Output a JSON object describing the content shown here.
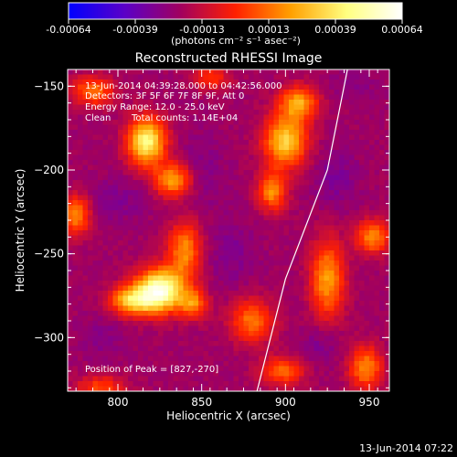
{
  "colorbar": {
    "ticks": [
      "-0.00064",
      "-0.00039",
      "-0.00013",
      "0.00013",
      "0.00039",
      "0.00064"
    ],
    "units": "(photons cm⁻² s⁻¹ asec⁻²)",
    "range": [
      -0.00064,
      0.00064
    ],
    "palette": [
      "#0000ff",
      "#5a00c8",
      "#a00060",
      "#ff2000",
      "#ffa000",
      "#ffff80",
      "#ffffff"
    ]
  },
  "chart_data": {
    "type": "heatmap",
    "title": "Reconstructed RHESSI Image",
    "xlabel": "Heliocentric X (arcsec)",
    "ylabel": "Heliocentric Y (arcsec)",
    "xlim": [
      770,
      962
    ],
    "ylim": [
      -332,
      -140
    ],
    "xticks": [
      800,
      850,
      900,
      950
    ],
    "yticks": [
      -150,
      -200,
      -250,
      -300
    ],
    "annotations": {
      "time": "13-Jun-2014 04:39:28.000 to 04:42:56.000",
      "detectors": "Detectors: 3F 5F 6F 7F 8F 9F, Att 0",
      "energy": "Energy Range: 12.0 - 25.0 keV",
      "clean": "Clean",
      "counts": "Total counts: 1.14E+04",
      "peak": "Position of Peak = [827,-270]"
    },
    "blobs": [
      {
        "x": 825,
        "y": -272,
        "sx": 10,
        "sy": 9,
        "a": 1.0
      },
      {
        "x": 808,
        "y": -278,
        "sx": 9,
        "sy": 6,
        "a": 0.62
      },
      {
        "x": 845,
        "y": -280,
        "sx": 6,
        "sy": 6,
        "a": 0.45
      },
      {
        "x": 817,
        "y": -183,
        "sx": 8,
        "sy": 10,
        "a": 0.82
      },
      {
        "x": 833,
        "y": -206,
        "sx": 8,
        "sy": 7,
        "a": 0.55
      },
      {
        "x": 840,
        "y": -248,
        "sx": 7,
        "sy": 12,
        "a": 0.5
      },
      {
        "x": 785,
        "y": -153,
        "sx": 9,
        "sy": 6,
        "a": 0.45
      },
      {
        "x": 775,
        "y": -227,
        "sx": 6,
        "sy": 8,
        "a": 0.5
      },
      {
        "x": 900,
        "y": -183,
        "sx": 9,
        "sy": 11,
        "a": 0.68
      },
      {
        "x": 908,
        "y": -160,
        "sx": 8,
        "sy": 7,
        "a": 0.55
      },
      {
        "x": 892,
        "y": -213,
        "sx": 6,
        "sy": 8,
        "a": 0.5
      },
      {
        "x": 925,
        "y": -265,
        "sx": 7,
        "sy": 16,
        "a": 0.55
      },
      {
        "x": 952,
        "y": -240,
        "sx": 7,
        "sy": 7,
        "a": 0.5
      },
      {
        "x": 880,
        "y": -290,
        "sx": 9,
        "sy": 9,
        "a": 0.45
      },
      {
        "x": 898,
        "y": -320,
        "sx": 9,
        "sy": 6,
        "a": 0.42
      },
      {
        "x": 948,
        "y": -318,
        "sx": 7,
        "sy": 9,
        "a": 0.5
      },
      {
        "x": 790,
        "y": -330,
        "sx": 10,
        "sy": 5,
        "a": 0.35
      },
      {
        "x": 855,
        "y": -145,
        "sx": 8,
        "sy": 5,
        "a": 0.3
      }
    ],
    "dips": [
      {
        "x": 800,
        "y": -218,
        "sx": 12,
        "sy": 9,
        "a": 0.55
      },
      {
        "x": 850,
        "y": -200,
        "sx": 9,
        "sy": 16,
        "a": 0.5
      },
      {
        "x": 868,
        "y": -250,
        "sx": 10,
        "sy": 14,
        "a": 0.55
      },
      {
        "x": 930,
        "y": -205,
        "sx": 9,
        "sy": 12,
        "a": 0.65
      },
      {
        "x": 790,
        "y": -300,
        "sx": 10,
        "sy": 8,
        "a": 0.45
      },
      {
        "x": 920,
        "y": -305,
        "sx": 8,
        "sy": 8,
        "a": 0.55
      },
      {
        "x": 940,
        "y": -150,
        "sx": 10,
        "sy": 6,
        "a": 0.4
      }
    ],
    "limb": [
      [
        937,
        -140
      ],
      [
        925,
        -200
      ],
      [
        900,
        -265
      ],
      [
        883,
        -332
      ]
    ]
  },
  "footer": {
    "timestamp": "13-Jun-2014 07:22"
  }
}
